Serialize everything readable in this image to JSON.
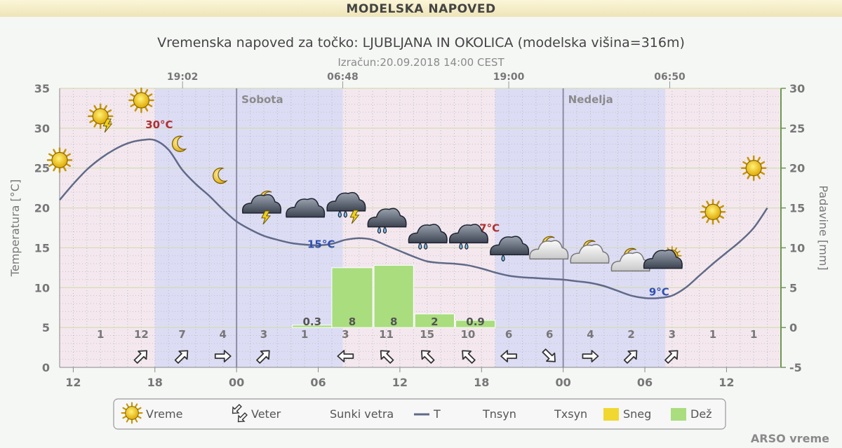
{
  "header": {
    "title": "MODELSKA NAPOVED"
  },
  "credit": "ARSO vreme",
  "colors": {
    "night_band": "#dcdcf4",
    "day_band": "#f4e8ee",
    "temp_line": "#606a88",
    "rain_bar": "#a9dd7e",
    "snow_bar": "#f0d830",
    "max_label": "#b03030",
    "min_label": "#3050b0"
  },
  "chart_data": {
    "type": "line",
    "title": "Vremenska napoved za točko: LJUBLJANA IN OKOLICA (modelska višina=316m)",
    "subtitle": "Izračun:20.09.2018 14:00 CEST",
    "ylabel": "Temperatura [°C]",
    "y2label": "Padavine [mm]",
    "ylim": [
      0,
      35
    ],
    "y2lim": [
      -5,
      30
    ],
    "yticks": [
      "0",
      "5",
      "10",
      "15",
      "20",
      "25",
      "30",
      "35"
    ],
    "y2ticks": [
      "-5",
      "0",
      "5",
      "10",
      "15",
      "20",
      "25",
      "30"
    ],
    "xlim": [
      10,
      63
    ],
    "xticks": [
      {
        "h": 11,
        "label": "12"
      },
      {
        "h": 17,
        "label": "18"
      },
      {
        "h": 23,
        "label": "00"
      },
      {
        "h": 29,
        "label": "06"
      },
      {
        "h": 35,
        "label": "12"
      },
      {
        "h": 41,
        "label": "18"
      },
      {
        "h": 47,
        "label": "00"
      },
      {
        "h": 53,
        "label": "06"
      },
      {
        "h": 59,
        "label": "12"
      }
    ],
    "sun_times": [
      {
        "h": 19.03,
        "label": "19:02"
      },
      {
        "h": 30.8,
        "label": "06:48"
      },
      {
        "h": 43.0,
        "label": "19:00"
      },
      {
        "h": 54.83,
        "label": "06:50"
      }
    ],
    "day_labels": [
      {
        "h": 23,
        "label": "Sobota"
      },
      {
        "h": 47,
        "label": "Nedelja"
      }
    ],
    "night_bands": [
      [
        17,
        30.8
      ],
      [
        42,
        54.5
      ]
    ],
    "grid": true,
    "temperature": {
      "name": "T",
      "x": [
        10,
        11,
        12,
        13,
        14,
        15,
        16,
        17,
        18,
        19,
        20,
        21,
        22,
        23,
        24,
        25,
        26,
        27,
        28,
        29,
        30,
        31,
        32,
        33,
        34,
        35,
        36,
        37,
        38,
        39,
        40,
        41,
        42,
        43,
        44,
        45,
        46,
        47,
        48,
        49,
        50,
        51,
        52,
        53,
        54,
        55,
        56,
        57,
        58,
        59,
        60,
        61,
        62
      ],
      "y": [
        21,
        23,
        24.8,
        26.2,
        27.3,
        28.1,
        28.5,
        28.5,
        27.3,
        24.8,
        23,
        21.5,
        19.8,
        18.3,
        17.3,
        16.5,
        16,
        15.6,
        15.4,
        15.3,
        15.5,
        16,
        16.2,
        16,
        15.3,
        14.6,
        13.9,
        13.3,
        13.1,
        13,
        12.8,
        12.4,
        11.9,
        11.5,
        11.3,
        11.2,
        11.1,
        11,
        10.8,
        10.6,
        10.2,
        9.6,
        9,
        8.7,
        8.7,
        9,
        10,
        11.5,
        13,
        14.4,
        15.8,
        17.5,
        20
      ]
    },
    "temp_labels": [
      {
        "h": 16.3,
        "t": 30,
        "text": "30°C",
        "kind": "max"
      },
      {
        "h": 28.2,
        "t": 15,
        "text": "15°C",
        "kind": "min"
      },
      {
        "h": 40.3,
        "t": 17,
        "text": "17°C",
        "kind": "max"
      },
      {
        "h": 53.3,
        "t": 9,
        "text": "9°C",
        "kind": "min"
      }
    ],
    "precipitation": {
      "name": "Dež",
      "bars": [
        {
          "from": 27.1,
          "to": 30,
          "value": 0.3,
          "label": "0.3"
        },
        {
          "from": 30,
          "to": 33,
          "value": 7.5,
          "label": "8"
        },
        {
          "from": 33.1,
          "to": 36,
          "value": 7.8,
          "label": "8"
        },
        {
          "from": 36.1,
          "to": 39,
          "value": 1.7,
          "label": "2"
        },
        {
          "from": 39.1,
          "to": 42,
          "value": 0.9,
          "label": "0.9"
        }
      ]
    },
    "gusts": {
      "name": "Sunki vetra",
      "x": [
        13,
        16,
        19,
        22,
        25,
        28,
        31,
        34,
        37,
        40,
        43,
        46,
        49,
        52,
        55,
        58,
        61
      ],
      "values": [
        "1",
        "12",
        "7",
        "4",
        "3",
        "1",
        "3",
        "11",
        "15",
        "10",
        "6",
        "6",
        "4",
        "2",
        "3",
        "1",
        "1"
      ]
    },
    "wind": {
      "name": "Veter",
      "x": [
        16,
        19,
        22,
        25,
        31,
        34,
        37,
        40,
        43,
        46,
        49,
        52,
        55
      ],
      "rot": [
        -45,
        -45,
        0,
        -45,
        180,
        -135,
        -135,
        -135,
        180,
        45,
        0,
        -45,
        -45
      ]
    },
    "weather_icons": [
      {
        "h": 10,
        "t": 26,
        "icon": "sun"
      },
      {
        "h": 13,
        "t": 31.5,
        "icon": "sun-thunder"
      },
      {
        "h": 16,
        "t": 33.5,
        "icon": "sun"
      },
      {
        "h": 19,
        "t": 28,
        "icon": "moon"
      },
      {
        "h": 22,
        "t": 24,
        "icon": "moon"
      },
      {
        "h": 25,
        "t": 20.5,
        "icon": "cloud-moon-thunder"
      },
      {
        "h": 28,
        "t": 20,
        "icon": "cloud"
      },
      {
        "h": 31,
        "t": 20.5,
        "icon": "cloud-thunder-rain"
      },
      {
        "h": 34,
        "t": 18.5,
        "icon": "cloud-rain"
      },
      {
        "h": 37,
        "t": 16.5,
        "icon": "cloud-rain"
      },
      {
        "h": 40,
        "t": 16.5,
        "icon": "cloud-rain"
      },
      {
        "h": 43,
        "t": 15,
        "icon": "cloud-rain-light"
      },
      {
        "h": 46,
        "t": 15,
        "icon": "cloud-moon"
      },
      {
        "h": 49,
        "t": 14.5,
        "icon": "cloud-moon"
      },
      {
        "h": 52,
        "t": 13.5,
        "icon": "cloud-moon"
      },
      {
        "h": 55,
        "t": 14,
        "icon": "cloud-sun"
      },
      {
        "h": 58,
        "t": 19.5,
        "icon": "sun"
      },
      {
        "h": 61,
        "t": 25,
        "icon": "sun"
      }
    ]
  },
  "legend": {
    "items": [
      {
        "label": "Vreme",
        "icon": "sun"
      },
      {
        "label": "Veter",
        "icon": "wind"
      },
      {
        "label": "Sunki vetra",
        "icon": "none"
      },
      {
        "label": "T",
        "icon": "line"
      },
      {
        "label": "Tnsyn",
        "icon": "none"
      },
      {
        "label": "Txsyn",
        "icon": "none"
      },
      {
        "label": "Sneg",
        "icon": "snow"
      },
      {
        "label": "Dež",
        "icon": "rain"
      }
    ]
  }
}
